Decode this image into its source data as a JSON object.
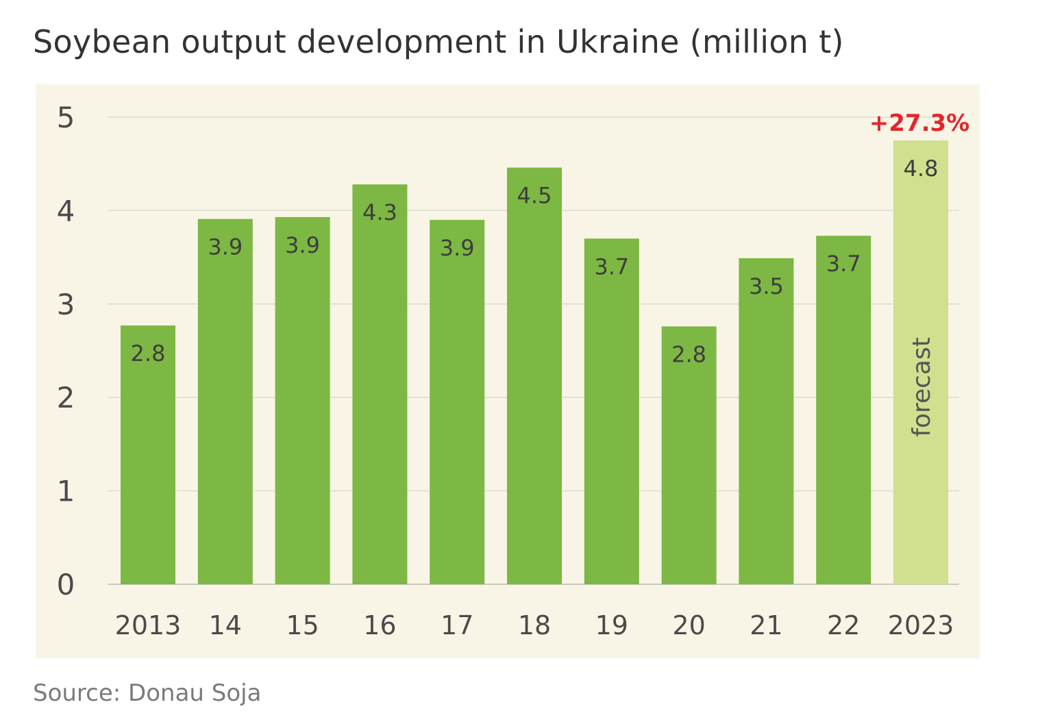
{
  "title": "Soybean output development in Ukraine (million t)",
  "source": "Source: Donau Soja",
  "colors": {
    "bar": "#7cb843",
    "forecast_bar": "#cfe08f",
    "background": "#f8f5e6",
    "grid": "#dcdcd0",
    "annotation": "#e3262d",
    "text": "#3d3d3d"
  },
  "chart_data": {
    "type": "bar",
    "title": "Soybean output development in Ukraine (million t)",
    "xlabel": "",
    "ylabel": "",
    "ylim": [
      0,
      5
    ],
    "yticks": [
      "0",
      "1",
      "2",
      "3",
      "4",
      "5"
    ],
    "grid": true,
    "categories": [
      "2013",
      "14",
      "15",
      "16",
      "17",
      "18",
      "19",
      "20",
      "21",
      "22",
      "2023"
    ],
    "values": [
      2.77,
      3.91,
      3.93,
      4.28,
      3.9,
      4.46,
      3.7,
      2.76,
      3.49,
      3.73,
      4.75
    ],
    "labels": [
      "2.8",
      "3.9",
      "3.9",
      "4.3",
      "3.9",
      "4.5",
      "3.7",
      "2.8",
      "3.5",
      "3.7",
      "4.8"
    ],
    "forecast_index": 10,
    "forecast_label": "forecast",
    "annotation": "+27.3%"
  }
}
